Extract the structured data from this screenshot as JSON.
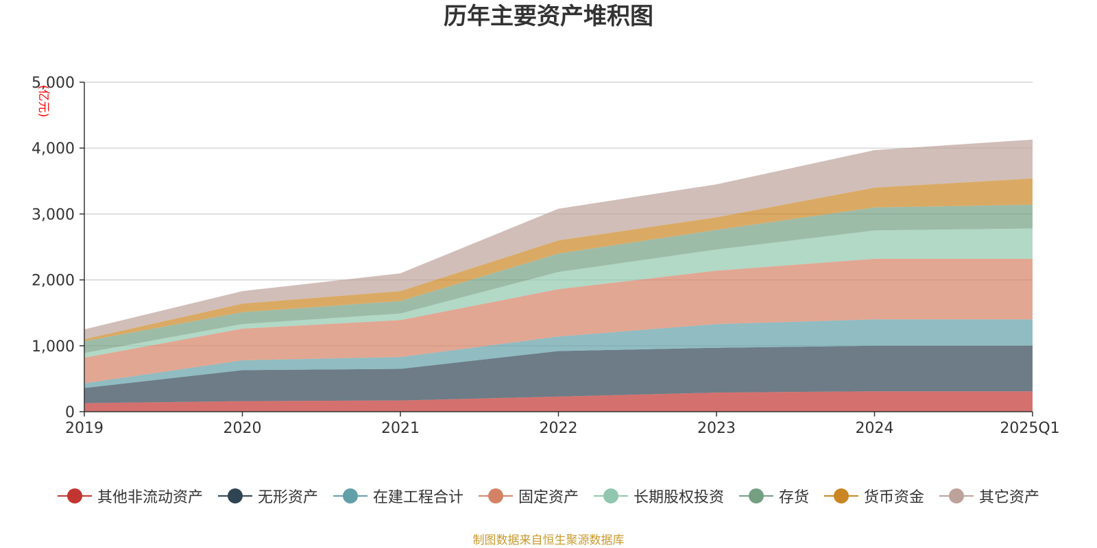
{
  "chart_data": {
    "type": "area",
    "stacked": true,
    "title": "历年主要资产堆积图",
    "ylabel": "(亿元)",
    "xlabel": "",
    "categories": [
      "2019",
      "2020",
      "2021",
      "2022",
      "2023",
      "2024",
      "2025Q1"
    ],
    "ylim": [
      0,
      5000
    ],
    "yticks": [
      "0",
      "1,000",
      "2,000",
      "3,000",
      "4,000",
      "5,000"
    ],
    "grid": true,
    "legend_position": "bottom",
    "series": [
      {
        "name": "其他非流动资产",
        "color": "#c23531",
        "values": [
          130,
          160,
          170,
          230,
          290,
          310,
          310
        ]
      },
      {
        "name": "无形资产",
        "color": "#2f4554",
        "values": [
          230,
          470,
          480,
          690,
          680,
          690,
          690
        ]
      },
      {
        "name": "在建工程合计",
        "color": "#61a0a8",
        "values": [
          70,
          150,
          180,
          220,
          360,
          400,
          400
        ]
      },
      {
        "name": "固定资产",
        "color": "#d48265",
        "values": [
          390,
          480,
          560,
          720,
          810,
          920,
          920
        ]
      },
      {
        "name": "长期股权投资",
        "color": "#91c7ae",
        "values": [
          70,
          70,
          100,
          260,
          320,
          430,
          460
        ]
      },
      {
        "name": "存货",
        "color": "#749f83",
        "values": [
          180,
          180,
          190,
          280,
          300,
          350,
          360
        ]
      },
      {
        "name": "货币资金",
        "color": "#ca8622",
        "values": [
          30,
          130,
          150,
          200,
          190,
          300,
          400
        ]
      },
      {
        "name": "其它资产",
        "color": "#bda29a",
        "values": [
          150,
          190,
          270,
          480,
          500,
          570,
          590
        ]
      }
    ],
    "source": "制图数据来自恒生聚源数据库"
  }
}
